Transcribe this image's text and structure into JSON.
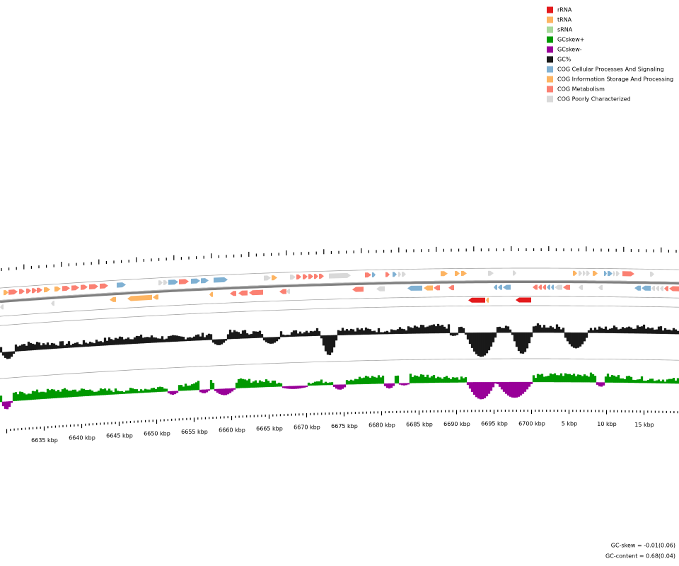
{
  "legend": [
    {
      "label": "rRNA",
      "color": "#e31a1c"
    },
    {
      "label": "tRNA",
      "color": "#fdb462"
    },
    {
      "label": "sRNA",
      "color": "#a6d99a"
    },
    {
      "label": "GCskew+",
      "color": "#009900"
    },
    {
      "label": "GCskew-",
      "color": "#990099"
    },
    {
      "label": "GC%",
      "color": "#1a1a1a"
    },
    {
      "label": "COG Cellular Processes And Signaling",
      "color": "#80b1d3"
    },
    {
      "label": "COG Information Storage And Processing",
      "color": "#fdb462"
    },
    {
      "label": "COG Metabolism",
      "color": "#fb8072"
    },
    {
      "label": "COG Poorly Characterized",
      "color": "#d9d9d9"
    }
  ],
  "scale_labels": [
    "6635 kbp",
    "6640 kbp",
    "6645 kbp",
    "6650 kbp",
    "6655 kbp",
    "6660 kbp",
    "6665 kbp",
    "6670 kbp",
    "6675 kbp",
    "6680 kbp",
    "6685 kbp",
    "6690 kbp",
    "6695 kbp",
    "6700 kbp",
    "5 kbp",
    "10 kbp",
    "15 kbp"
  ],
  "footer": [
    "GC-skew = -0.01(0.06)",
    "GC-content = 0.68(0.04)"
  ]
}
